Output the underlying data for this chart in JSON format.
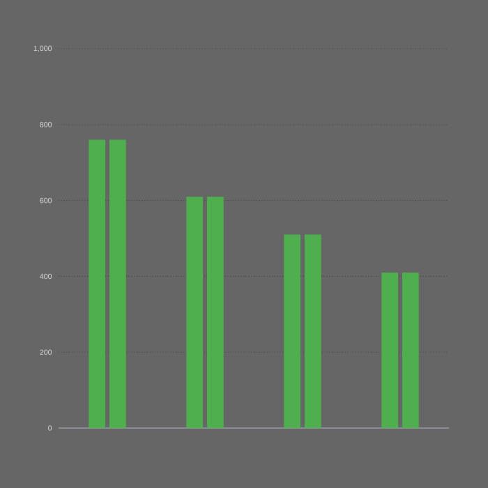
{
  "chart_data": {
    "type": "bar",
    "categories": [
      null,
      null,
      null,
      null
    ],
    "series": [
      {
        "color": "#4fae4e",
        "values": [
          760,
          610,
          510,
          410
        ]
      },
      {
        "color": "#4fae4e",
        "values": [
          760,
          610,
          510,
          410
        ]
      }
    ],
    "ylim": [
      0,
      1000
    ],
    "yticks": [
      0,
      200,
      400,
      600,
      800,
      {
        "value": 1000,
        "label": "1,000"
      }
    ],
    "grid": "y"
  }
}
